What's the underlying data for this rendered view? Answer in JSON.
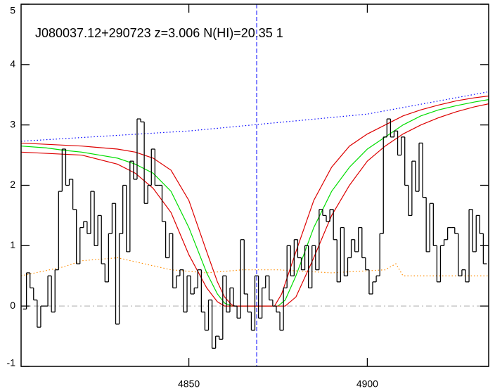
{
  "chart_data": {
    "type": "step",
    "title": "J080037.12+290723 z=3.006 N(HI)=20.35 1",
    "xlim": [
      4803,
      4934
    ],
    "ylim": [
      -1,
      5
    ],
    "xticks": [
      4850,
      4900
    ],
    "yticks": [
      -1,
      0,
      1,
      2,
      3,
      4,
      5
    ],
    "hline": 0,
    "vline": 4869,
    "flux": {
      "color": "#000000",
      "x": [
        4804,
        4805,
        4806,
        4807,
        4808,
        4809,
        4810,
        4811,
        4812,
        4813,
        4814,
        4815,
        4816,
        4817,
        4818,
        4819,
        4820,
        4821,
        4822,
        4823,
        4824,
        4825,
        4826,
        4827,
        4828,
        4829,
        4830,
        4831,
        4832,
        4833,
        4834,
        4835,
        4836,
        4837,
        4838,
        4839,
        4840,
        4841,
        4842,
        4843,
        4844,
        4845,
        4846,
        4847,
        4848,
        4849,
        4850,
        4851,
        4852,
        4853,
        4854,
        4855,
        4856,
        4857,
        4858,
        4859,
        4860,
        4861,
        4862,
        4863,
        4864,
        4865,
        4866,
        4867,
        4868,
        4869,
        4870,
        4871,
        4872,
        4873,
        4874,
        4875,
        4876,
        4877,
        4878,
        4879,
        4880,
        4881,
        4882,
        4883,
        4884,
        4885,
        4886,
        4887,
        4888,
        4889,
        4890,
        4891,
        4892,
        4893,
        4894,
        4895,
        4896,
        4897,
        4898,
        4899,
        4900,
        4901,
        4902,
        4903,
        4904,
        4905,
        4906,
        4907,
        4908,
        4909,
        4910,
        4911,
        4912,
        4913,
        4914,
        4915,
        4916,
        4917,
        4918,
        4919,
        4920,
        4921,
        4922,
        4923,
        4924,
        4925,
        4926,
        4927,
        4928,
        4929,
        4930,
        4931,
        4932,
        4933
      ],
      "values": [
        -0.05,
        0.55,
        0.3,
        0.1,
        -0.35,
        0.0,
        0.0,
        0.5,
        -0.1,
        0.6,
        1.9,
        2.6,
        2.0,
        2.1,
        1.6,
        0.7,
        1.3,
        1.4,
        1.2,
        1.9,
        1.0,
        1.5,
        0.7,
        0.4,
        1.2,
        1.7,
        -0.3,
        1.2,
        2.0,
        0.9,
        2.4,
        2.1,
        3.1,
        3.05,
        1.7,
        2.0,
        2.6,
        2.0,
        2.0,
        1.4,
        0.8,
        1.2,
        0.3,
        0.5,
        0.6,
        -0.1,
        0.5,
        0.2,
        0.3,
        0.6,
        -0.1,
        -0.4,
        0.1,
        -0.7,
        -0.5,
        -0.55,
        0.5,
        -0.1,
        0.3,
        0.0,
        -0.2,
        1.1,
        0.2,
        -0.1,
        -0.4,
        0.5,
        -0.2,
        0.3,
        0.5,
        0.1,
        0.0,
        -0.1,
        -0.4,
        0.3,
        1.0,
        0.5,
        1.1,
        0.8,
        0.6,
        1.0,
        0.3,
        1.0,
        0.6,
        1.6,
        1.5,
        1.4,
        1.6,
        1.1,
        0.4,
        1.3,
        0.5,
        0.8,
        1.1,
        0.9,
        1.3,
        0.8,
        0.6,
        0.2,
        0.4,
        0.5,
        1.2,
        2.8,
        3.1,
        2.8,
        2.9,
        2.5,
        2.8,
        2.0,
        1.5,
        2.4,
        1.9,
        2.7,
        1.8,
        0.9,
        1.7,
        1.0,
        0.4,
        1.0,
        1.1,
        1.3,
        1.3,
        1.2,
        0.5,
        0.6,
        0.4,
        1.6,
        0.9,
        1.5,
        1.2,
        0.7
      ]
    },
    "series": [
      {
        "color": "#ff8c00",
        "style": "dotted",
        "x": [
          4803,
          4815,
          4820,
          4830,
          4845,
          4855,
          4865,
          4875,
          4890,
          4905,
          4908,
          4910,
          4920,
          4934
        ],
        "values": [
          0.5,
          0.65,
          0.75,
          0.8,
          0.6,
          0.55,
          0.6,
          0.6,
          0.55,
          0.6,
          0.7,
          0.5,
          0.5,
          0.5
        ]
      },
      {
        "color": "#0000ff",
        "style": "dotted",
        "x": [
          4803,
          4850,
          4900,
          4934
        ],
        "values": [
          2.73,
          2.9,
          3.18,
          3.55
        ]
      },
      {
        "color": "#00dd00",
        "style": "solid",
        "x": [
          4803,
          4810,
          4815,
          4820,
          4825,
          4830,
          4835,
          4840,
          4845,
          4850,
          4855,
          4858,
          4860,
          4862,
          4870,
          4875,
          4877,
          4880,
          4885,
          4890,
          4895,
          4900,
          4905,
          4910,
          4915,
          4920,
          4925,
          4930,
          4934
        ],
        "values": [
          2.65,
          2.62,
          2.58,
          2.55,
          2.5,
          2.45,
          2.35,
          2.2,
          1.9,
          1.3,
          0.55,
          0.2,
          0.05,
          0,
          0,
          0,
          0.1,
          0.5,
          1.3,
          1.9,
          2.3,
          2.6,
          2.8,
          3.0,
          3.15,
          3.25,
          3.32,
          3.38,
          3.42
        ]
      },
      {
        "color": "#dd0000",
        "style": "solid",
        "x": [
          4803,
          4820,
          4830,
          4835,
          4840,
          4845,
          4850,
          4855,
          4858,
          4860,
          4862,
          4863,
          4874,
          4876,
          4880,
          4885,
          4890,
          4895,
          4900,
          4905,
          4910,
          4915,
          4920,
          4925,
          4930,
          4934
        ],
        "values": [
          2.7,
          2.65,
          2.6,
          2.55,
          2.45,
          2.25,
          1.75,
          0.9,
          0.4,
          0.15,
          0.02,
          0,
          0,
          0.2,
          0.9,
          1.75,
          2.3,
          2.65,
          2.85,
          3.0,
          3.15,
          3.25,
          3.33,
          3.4,
          3.45,
          3.48
        ]
      },
      {
        "color": "#dd0000",
        "style": "solid",
        "x": [
          4803,
          4820,
          4830,
          4835,
          4840,
          4845,
          4850,
          4855,
          4858,
          4860,
          4877,
          4880,
          4885,
          4890,
          4895,
          4900,
          4905,
          4910,
          4915,
          4920,
          4925,
          4930,
          4934
        ],
        "values": [
          2.55,
          2.5,
          2.35,
          2.2,
          1.95,
          1.55,
          0.85,
          0.3,
          0.07,
          0,
          0,
          0.15,
          0.8,
          1.5,
          2.0,
          2.4,
          2.65,
          2.85,
          3.0,
          3.12,
          3.22,
          3.3,
          3.35
        ]
      }
    ]
  }
}
